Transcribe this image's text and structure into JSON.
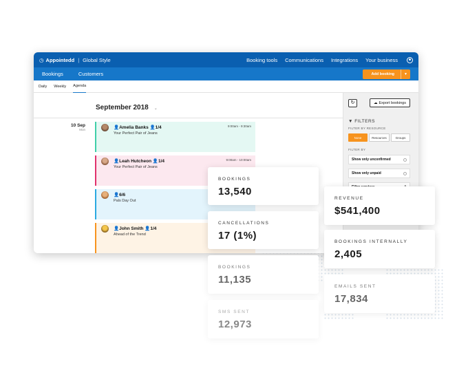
{
  "app": {
    "brand": "Appointedd",
    "workspace": "Global Style",
    "nav": [
      "Booking tools",
      "Communications",
      "Integrations",
      "Your business"
    ],
    "subnav": [
      "Bookings",
      "Customers"
    ],
    "add_booking": "Add booking",
    "tabs": [
      "Daily",
      "Weekly",
      "Agenda"
    ],
    "active_tab": "Agenda",
    "month": "September 2018",
    "day": {
      "date": "10 Sep",
      "weekday": "Mon"
    },
    "bookings": [
      {
        "name": "Amelia Banks",
        "count": "1/4",
        "service": "Your Perfect Pair of Jeans",
        "time": "9:00am - 9:30am",
        "color": "#3fcfa8",
        "bg": "#e4f8f3"
      },
      {
        "name": "Leah Hutcheon",
        "count": "1/4",
        "service": "Your Perfect Pair of Jeans",
        "time": "9:00am - 10:00am",
        "color": "#e0316c",
        "bg": "#fce8ef"
      },
      {
        "name": "",
        "count": "6/6",
        "service": "Pals Day Out",
        "time": "",
        "color": "#2aa9e0",
        "bg": "#e3f4fc"
      },
      {
        "name": "John Smith",
        "count": "1/4",
        "service": "Ahead of the Trend",
        "time": "",
        "color": "#f7931e",
        "bg": "#fef3e5"
      }
    ],
    "sidebar": {
      "export": "Export bookings",
      "filters_title": "FILTERS",
      "filter_by_resource": "FILTER BY RESOURCE",
      "resource_options": [
        "None",
        "Resources",
        "Groups"
      ],
      "selected_resource": "None",
      "filter_by": "FILTER BY",
      "options": [
        "Show only unconfirmed",
        "Show only unpaid",
        "Filter services"
      ]
    }
  },
  "stats": [
    {
      "label": "BOOKINGS",
      "value": "13,540"
    },
    {
      "label": "CANCELLATIONS",
      "value": "17 (1%)"
    },
    {
      "label": "BOOKINGS",
      "value": "11,135"
    },
    {
      "label": "SMS SENT",
      "value": "12,973"
    },
    {
      "label": "REVENUE",
      "value": "$541,400"
    },
    {
      "label": "BOOKINGS INTERNALLY",
      "value": "2,405"
    },
    {
      "label": "EMAILS SENT",
      "value": "17,834"
    }
  ],
  "colors": {
    "primary": "#0a5fb0",
    "secondary": "#1677c9",
    "accent": "#f7931e"
  }
}
